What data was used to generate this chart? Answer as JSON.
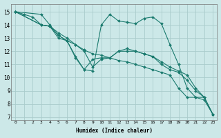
{
  "xlabel": "Humidex (Indice chaleur)",
  "background_color": "#cce8e8",
  "grid_color": "#aacccc",
  "line_color": "#1a7a6e",
  "markersize": 2.0,
  "linewidth": 0.8,
  "xlim": [
    -0.5,
    23.5
  ],
  "ylim": [
    6.8,
    15.6
  ],
  "yticks": [
    7,
    8,
    9,
    10,
    11,
    12,
    13,
    14,
    15
  ],
  "xticks": [
    0,
    1,
    2,
    3,
    4,
    5,
    6,
    7,
    8,
    9,
    10,
    11,
    12,
    13,
    14,
    15,
    16,
    17,
    18,
    19,
    20,
    21,
    22,
    23
  ],
  "series": [
    {
      "x": [
        0,
        1,
        2,
        3,
        4,
        5,
        6,
        7,
        8,
        9,
        10,
        11,
        12,
        13,
        14,
        15,
        16,
        17,
        18,
        19,
        20,
        21,
        22,
        23
      ],
      "y": [
        15.0,
        14.8,
        14.6,
        14.0,
        13.9,
        13.4,
        13.0,
        12.5,
        12.1,
        11.8,
        11.7,
        11.5,
        11.3,
        11.2,
        11.0,
        10.8,
        10.6,
        10.4,
        10.2,
        9.2,
        8.5,
        8.5,
        8.3,
        7.2
      ]
    },
    {
      "x": [
        0,
        3,
        4,
        5,
        6,
        7,
        8,
        9,
        10,
        11,
        12,
        13,
        14,
        15,
        16,
        17,
        18,
        19,
        20,
        21,
        22,
        23
      ],
      "y": [
        15.0,
        14.8,
        14.0,
        13.2,
        12.8,
        11.6,
        10.6,
        10.5,
        14.0,
        14.8,
        14.3,
        14.2,
        14.1,
        14.5,
        14.6,
        14.1,
        12.5,
        11.0,
        9.2,
        8.5,
        8.5,
        7.2
      ]
    },
    {
      "x": [
        0,
        3,
        4,
        5,
        6,
        7,
        8,
        9,
        10,
        11,
        12,
        13,
        14,
        15,
        16,
        17,
        18,
        19,
        20,
        21,
        22,
        23
      ],
      "y": [
        15.0,
        14.0,
        13.9,
        13.2,
        12.8,
        11.5,
        10.6,
        11.4,
        11.5,
        11.5,
        12.0,
        12.0,
        12.0,
        11.8,
        11.6,
        11.2,
        10.8,
        10.5,
        10.2,
        9.2,
        8.5,
        7.2
      ]
    },
    {
      "x": [
        0,
        3,
        4,
        5,
        6,
        7,
        8,
        9,
        10,
        11,
        12,
        13,
        14,
        15,
        16,
        17,
        18,
        19,
        20,
        21,
        22,
        23
      ],
      "y": [
        15.0,
        14.0,
        13.9,
        13.0,
        12.8,
        12.5,
        12.0,
        10.8,
        11.4,
        11.5,
        12.0,
        12.2,
        12.0,
        11.8,
        11.6,
        11.0,
        10.6,
        10.4,
        9.8,
        9.0,
        8.5,
        7.2
      ]
    }
  ]
}
